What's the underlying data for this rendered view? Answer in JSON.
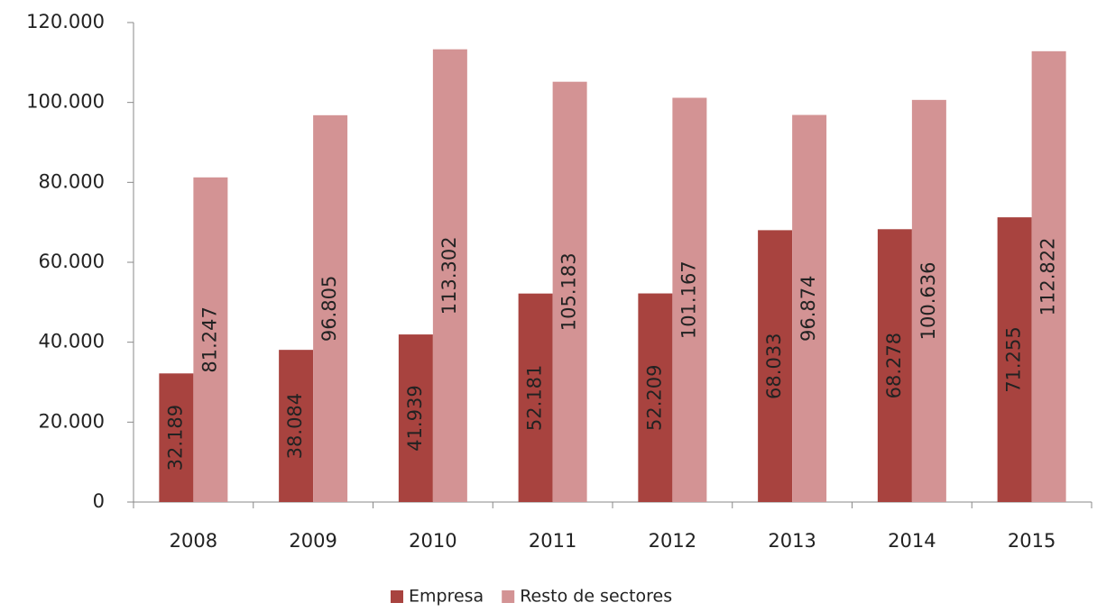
{
  "chart_data": {
    "type": "bar",
    "categories": [
      "2008",
      "2009",
      "2010",
      "2011",
      "2012",
      "2013",
      "2014",
      "2015"
    ],
    "series": [
      {
        "name": "Empresa",
        "color": "#a8433f",
        "values": [
          32189,
          38084,
          41939,
          52181,
          52209,
          68033,
          68278,
          71255
        ],
        "value_labels": [
          "32.189",
          "38.084",
          "41.939",
          "52.181",
          "52.209",
          "68.033",
          "68.278",
          "71.255"
        ]
      },
      {
        "name": "Resto de sectores",
        "color": "#d39394",
        "values": [
          81247,
          96805,
          113302,
          105183,
          101167,
          96874,
          100636,
          112822
        ],
        "value_labels": [
          "81.247",
          "96.805",
          "113.302",
          "105.183",
          "101.167",
          "96.874",
          "100.636",
          "112.822"
        ]
      }
    ],
    "ylim": [
      0,
      120000
    ],
    "yticks": [
      0,
      {
        "value": 20000,
        "label": "20.000"
      },
      {
        "value": 40000,
        "label": "40.000"
      },
      {
        "value": 60000,
        "label": "60.000"
      },
      {
        "value": 80000,
        "label": "80.000"
      },
      {
        "value": 100000,
        "label": "100.000"
      },
      {
        "value": 120000,
        "label": "120.000"
      }
    ],
    "legend": "bottom"
  }
}
